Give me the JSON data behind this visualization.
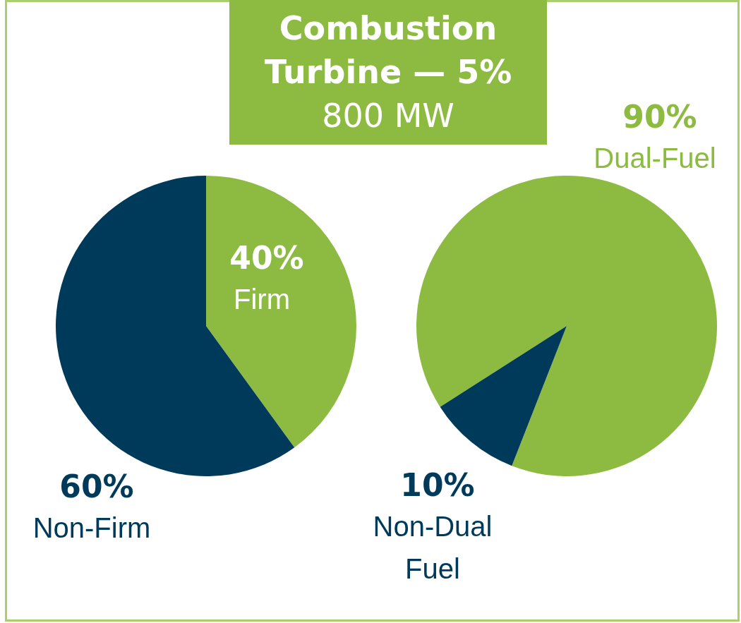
{
  "chart_data": [
    {
      "type": "other",
      "title": "Combustion Turbine — 5%",
      "subtitle": "800 MW"
    },
    {
      "type": "pie",
      "categories": [
        "Firm",
        "Non-Firm"
      ],
      "values": [
        40,
        60
      ],
      "colors": [
        "#8dbb41",
        "#003a5a"
      ],
      "value_labels": [
        "40%",
        "60%"
      ]
    },
    {
      "type": "pie",
      "categories": [
        "Dual-Fuel",
        "Non-Dual Fuel"
      ],
      "values": [
        90,
        10
      ],
      "colors": [
        "#8dbb41",
        "#003a5a"
      ],
      "value_labels": [
        "90%",
        "10%"
      ]
    }
  ]
}
